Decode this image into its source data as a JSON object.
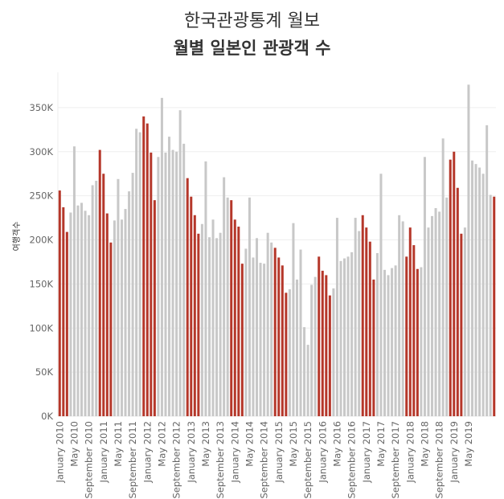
{
  "chart_data": {
    "type": "bar",
    "title": "한국관광통계 월보",
    "subtitle": "월별 일본인 관광객 수",
    "ylabel": "여행객수",
    "ylim": [
      0,
      390000
    ],
    "yticks": [
      0,
      50000,
      100000,
      150000,
      200000,
      250000,
      300000,
      350000
    ],
    "ytick_labels": [
      "0K",
      "50K",
      "100K",
      "150K",
      "200K",
      "250K",
      "300K",
      "350K"
    ],
    "grid": true,
    "colors": {
      "highlight": "#b5372a",
      "normal": "#c8c8c8"
    },
    "x_tick_labels": [
      {
        "index": 0,
        "label": "January 2010"
      },
      {
        "index": 4,
        "label": "May 2010"
      },
      {
        "index": 8,
        "label": "September 2010"
      },
      {
        "index": 12,
        "label": "January 2011"
      },
      {
        "index": 16,
        "label": "May 2011"
      },
      {
        "index": 20,
        "label": "September 2011"
      },
      {
        "index": 24,
        "label": "January 2012"
      },
      {
        "index": 28,
        "label": "May 2012"
      },
      {
        "index": 32,
        "label": "September 2012"
      },
      {
        "index": 36,
        "label": "January 2013"
      },
      {
        "index": 40,
        "label": "May 2013"
      },
      {
        "index": 44,
        "label": "September 2013"
      },
      {
        "index": 48,
        "label": "January 2014"
      },
      {
        "index": 52,
        "label": "May 2014"
      },
      {
        "index": 56,
        "label": "September 2014"
      },
      {
        "index": 60,
        "label": "January 2015"
      },
      {
        "index": 64,
        "label": "May 2015"
      },
      {
        "index": 68,
        "label": "September 2015"
      },
      {
        "index": 72,
        "label": "January 2016"
      },
      {
        "index": 76,
        "label": "May 2016"
      },
      {
        "index": 80,
        "label": "September 2016"
      },
      {
        "index": 84,
        "label": "January 2017"
      },
      {
        "index": 88,
        "label": "May 2017"
      },
      {
        "index": 92,
        "label": "September 2017"
      },
      {
        "index": 96,
        "label": "January 2018"
      },
      {
        "index": 100,
        "label": "May 2018"
      },
      {
        "index": 104,
        "label": "September 2018"
      },
      {
        "index": 108,
        "label": "January 2019"
      },
      {
        "index": 112,
        "label": "May 2019"
      }
    ],
    "values": [
      256000,
      237000,
      209000,
      231000,
      306000,
      239000,
      242000,
      233000,
      228000,
      262000,
      267000,
      302000,
      275000,
      230000,
      197000,
      222000,
      269000,
      223000,
      235000,
      255000,
      276000,
      326000,
      322000,
      340000,
      332000,
      299000,
      245000,
      294000,
      361000,
      299000,
      317000,
      302000,
      300000,
      347000,
      309000,
      270000,
      249000,
      228000,
      207000,
      218000,
      289000,
      203000,
      223000,
      202000,
      208000,
      271000,
      248000,
      245000,
      223000,
      215000,
      173000,
      190000,
      248000,
      180000,
      202000,
      174000,
      173000,
      208000,
      197000,
      191000,
      180000,
      171000,
      140000,
      144000,
      219000,
      155000,
      189000,
      101000,
      81000,
      149000,
      158000,
      181000,
      165000,
      160000,
      137000,
      145000,
      225000,
      176000,
      179000,
      181000,
      186000,
      225000,
      210000,
      228000,
      214000,
      198000,
      155000,
      185000,
      275000,
      166000,
      160000,
      168000,
      171000,
      228000,
      221000,
      181000,
      214000,
      194000,
      167000,
      169000,
      294000,
      214000,
      227000,
      236000,
      232000,
      315000,
      248000,
      291000,
      300000,
      259000,
      207000,
      214000,
      376000,
      290000,
      286000,
      282000,
      275000,
      330000,
      251000,
      249000
    ],
    "highlight": [
      1,
      1,
      1,
      0,
      0,
      0,
      0,
      0,
      0,
      0,
      0,
      1,
      1,
      1,
      1,
      0,
      0,
      0,
      0,
      0,
      0,
      0,
      0,
      1,
      1,
      1,
      1,
      0,
      0,
      0,
      0,
      0,
      0,
      0,
      0,
      1,
      1,
      1,
      1,
      0,
      0,
      0,
      0,
      0,
      0,
      0,
      0,
      1,
      1,
      1,
      1,
      0,
      0,
      0,
      0,
      0,
      0,
      0,
      0,
      1,
      1,
      1,
      1,
      0,
      0,
      0,
      0,
      0,
      0,
      0,
      0,
      1,
      1,
      1,
      1,
      0,
      0,
      0,
      0,
      0,
      0,
      0,
      0,
      1,
      1,
      1,
      1,
      0,
      0,
      0,
      0,
      0,
      0,
      0,
      0,
      1,
      1,
      1,
      1,
      0,
      0,
      0,
      0,
      0,
      0,
      0,
      0,
      1,
      1,
      1,
      1,
      0,
      0,
      0,
      0,
      0,
      0,
      0,
      0,
      1
    ]
  }
}
